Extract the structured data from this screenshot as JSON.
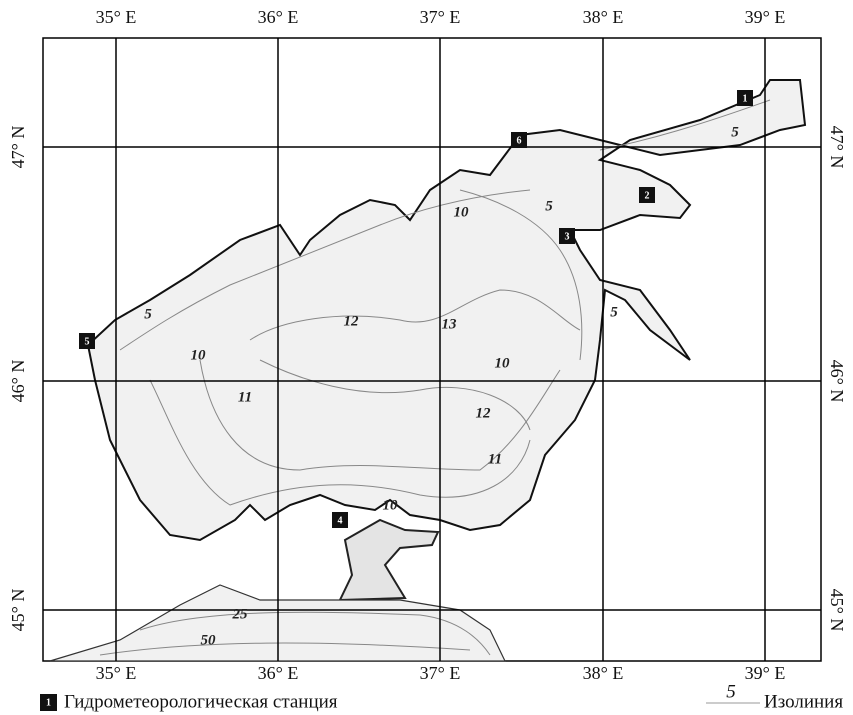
{
  "axis_labels": {
    "top": [
      "35° E",
      "36° E",
      "37° E",
      "38° E",
      "39° E"
    ],
    "bottom": [
      "35° E",
      "36° E",
      "37° E",
      "38° E",
      "39° E"
    ],
    "left": [
      "47° N",
      "46° N",
      "45° N"
    ],
    "right": [
      "47° N",
      "46° N",
      "45° N"
    ]
  },
  "stations": [
    "1",
    "2",
    "3",
    "4",
    "5",
    "6"
  ],
  "isolines": [
    "5",
    "5",
    "10",
    "5",
    "12",
    "13",
    "5",
    "10",
    "10",
    "11",
    "12",
    "11",
    "10",
    "25",
    "50"
  ],
  "legend": {
    "station_marker": "1",
    "station": "Гидрометеорологическая станция",
    "isoline_marker": "5",
    "isoline": "Изолиния"
  }
}
